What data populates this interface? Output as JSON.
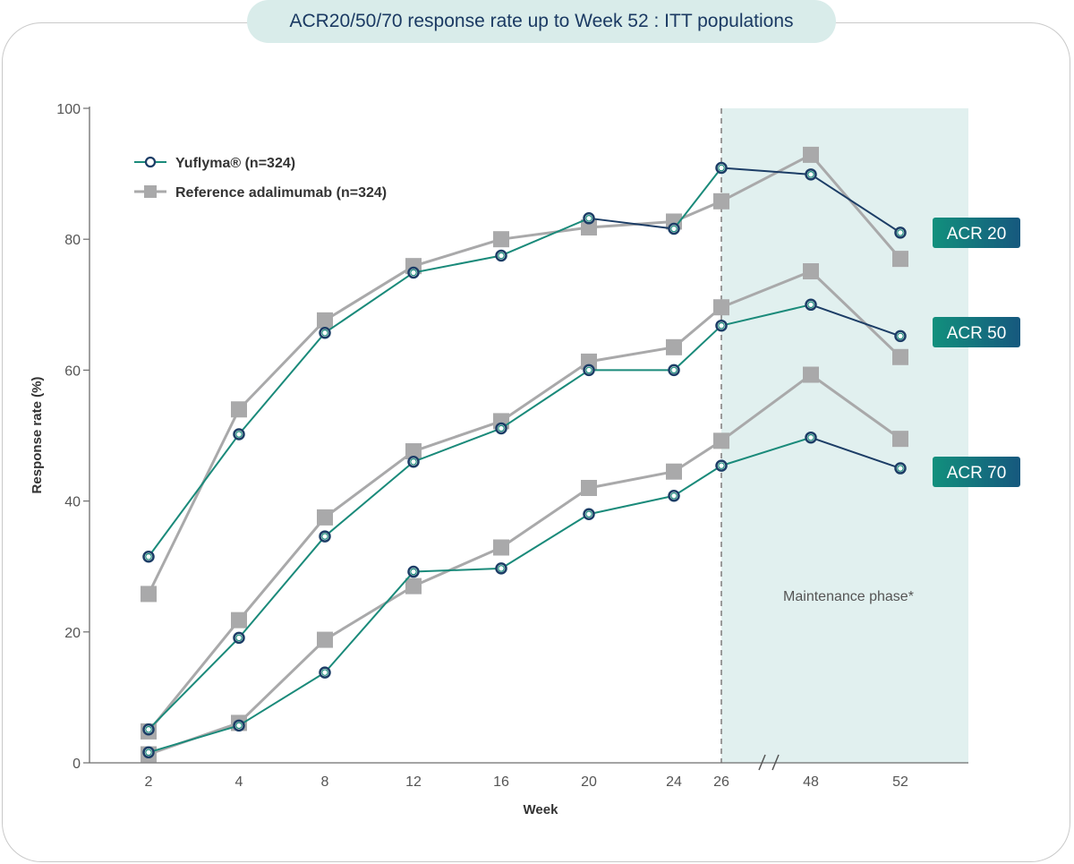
{
  "title": "ACR20/50/70 response rate up to Week 52 : ITT  populations",
  "colors": {
    "yuflyma_line": "#1a8a7a",
    "yuflyma_line_dark": "#1c3d66",
    "yuflyma_marker_inner": "#ffffff",
    "reference": "#a9a9aa",
    "maintenance_shade": "#e1f0ef",
    "tag_gradient_start": "#12907d",
    "tag_gradient_end": "#16587e"
  },
  "chart_data": {
    "type": "line",
    "title": "",
    "xlabel": "Week",
    "ylabel": "Response rate (%)",
    "ylim": [
      0,
      100
    ],
    "yticks": [
      0,
      20,
      40,
      60,
      80,
      100
    ],
    "x": [
      "2",
      "4",
      "8",
      "12",
      "16",
      "20",
      "24",
      "26",
      "48",
      "52"
    ],
    "axis_break": "between 26 and 48",
    "grid": false,
    "legend_position": "top-left",
    "legend": [
      {
        "label": "Yuflyma® (n=324)",
        "marker": "open-circle"
      },
      {
        "label": "Reference adalimumab (n=324)",
        "marker": "square"
      }
    ],
    "series": [
      {
        "group": "ACR 20",
        "name": "Yuflyma® (n=324)",
        "values": [
          31.5,
          50.2,
          65.7,
          74.9,
          77.5,
          83.2,
          81.6,
          90.9,
          89.9,
          81.0
        ]
      },
      {
        "group": "ACR 20",
        "name": "Reference adalimumab (n=324)",
        "values": [
          25.8,
          54.0,
          67.6,
          75.9,
          80.0,
          81.8,
          82.7,
          85.8,
          92.9,
          77.0
        ]
      },
      {
        "group": "ACR 50",
        "name": "Yuflyma® (n=324)",
        "values": [
          5.1,
          19.1,
          34.6,
          46.0,
          51.1,
          60.0,
          60.0,
          66.8,
          70.0,
          65.2
        ]
      },
      {
        "group": "ACR 50",
        "name": "Reference adalimumab (n=324)",
        "values": [
          4.8,
          21.8,
          37.5,
          47.6,
          52.2,
          61.3,
          63.5,
          69.6,
          75.1,
          62.0
        ]
      },
      {
        "group": "ACR 70",
        "name": "Yuflyma® (n=324)",
        "values": [
          1.6,
          5.7,
          13.8,
          29.2,
          29.7,
          38.0,
          40.8,
          45.4,
          49.7,
          45.0
        ]
      },
      {
        "group": "ACR 70",
        "name": "Reference adalimumab (n=324)",
        "values": [
          1.3,
          6.1,
          18.8,
          27.0,
          32.9,
          42.0,
          44.5,
          49.2,
          59.3,
          49.5
        ]
      }
    ],
    "group_labels": [
      "ACR 20",
      "ACR 50",
      "ACR 70"
    ],
    "annotations": [
      {
        "text": "Maintenance phase*",
        "region": "week 26 to 52 (shaded)"
      }
    ]
  }
}
